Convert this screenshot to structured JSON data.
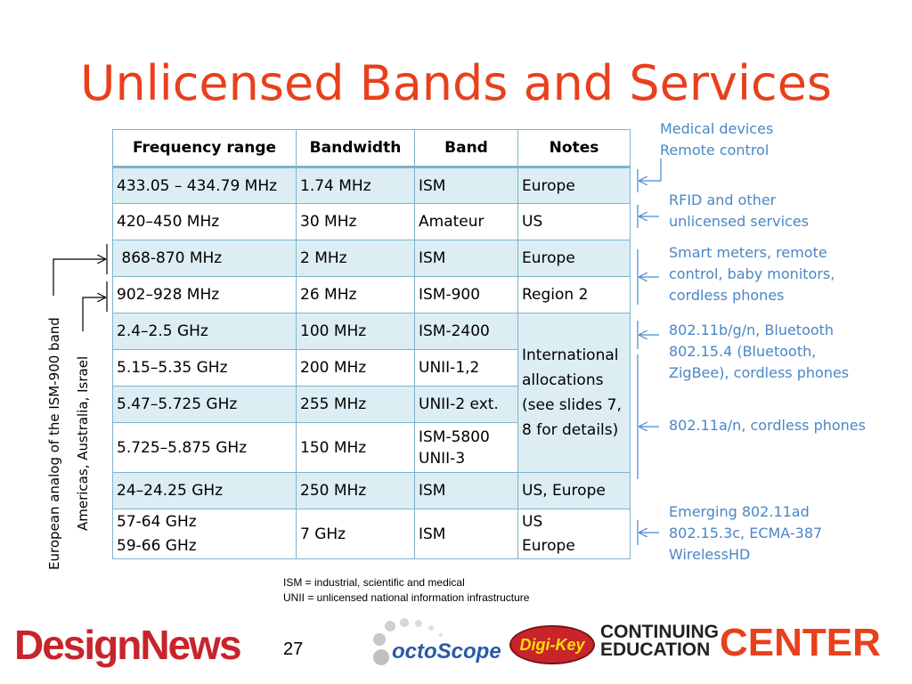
{
  "title": "Unlicensed Bands and Services",
  "table": {
    "headers": [
      "Frequency range",
      "Bandwidth",
      "Band",
      "Notes"
    ],
    "rows": [
      [
        "433.05 – 434.79 MHz",
        "1.74 MHz",
        "ISM",
        "Europe"
      ],
      [
        "420–450 MHz",
        "30 MHz",
        "Amateur",
        "US"
      ],
      [
        " 868-870 MHz",
        "2 MHz",
        "ISM",
        "Europe"
      ],
      [
        "902–928 MHz",
        "26 MHz",
        "ISM-900",
        "Region 2"
      ],
      [
        "2.4–2.5 GHz",
        "100 MHz",
        "ISM-2400"
      ],
      [
        "5.15–5.35 GHz",
        "200 MHz",
        "UNII-1,2"
      ],
      [
        "5.47–5.725 GHz",
        "255 MHz",
        "UNII-2 ext."
      ],
      [
        "5.725–5.875 GHz",
        "150 MHz",
        "ISM-5800\nUNII-3"
      ],
      [
        "24–24.25 GHz",
        "250 MHz",
        "ISM",
        "US, Europe"
      ],
      [
        "57-64 GHz\n59-66 GHz",
        "7 GHz",
        "ISM",
        "US\nEurope"
      ]
    ],
    "merged_note": "International allocations (see slides 7, 8 for details)"
  },
  "side_notes": [
    "Medical devices\nRemote control",
    "RFID and other\nunlicensed services",
    "Smart meters, remote\ncontrol, baby monitors,\ncordless phones",
    "802.11b/g/n, Bluetooth\n802.15.4 (Bluetooth,\nZigBee), cordless phones",
    "802.11a/n, cordless phones",
    "Emerging 802.11ad\n802.15.3c, ECMA-387\nWirelessHD"
  ],
  "left_labels": {
    "european": "European analog of the  ISM-900 band",
    "americas": "Americas, Australia, Israel"
  },
  "footnotes": [
    "ISM = industrial, scientific and medical",
    "UNII = unlicensed national information infrastructure"
  ],
  "page_number": "27",
  "logos": {
    "design_news": "DesignNews",
    "octoscope": "octoScope",
    "digikey": "Digi-Key",
    "ce_line1": "CONTINUING",
    "ce_line2": "EDUCATION",
    "ce_center": "CENTER"
  }
}
